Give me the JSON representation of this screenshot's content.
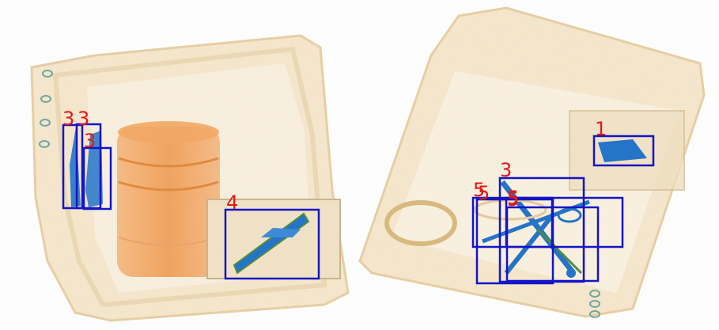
{
  "image": {
    "kind": "x-ray baggage scan with detection boxes",
    "background": "#ffffff",
    "colors": {
      "bin_fill": "#f6e7cc",
      "bin_edge": "#e8cfa3",
      "organic_orange": "#f3a864",
      "metal_blue": "#1f72c9",
      "green_edge": "#4f8a3a",
      "box_stroke": "#1414c8",
      "label_red": "#e01818"
    }
  },
  "detections": [
    {
      "label": "3"
    },
    {
      "label": "3"
    },
    {
      "label": "3"
    },
    {
      "label": "4"
    },
    {
      "label": "1"
    },
    {
      "label": "3"
    },
    {
      "label": "5"
    },
    {
      "label": "5"
    },
    {
      "label": "5"
    },
    {
      "label": "5"
    }
  ]
}
